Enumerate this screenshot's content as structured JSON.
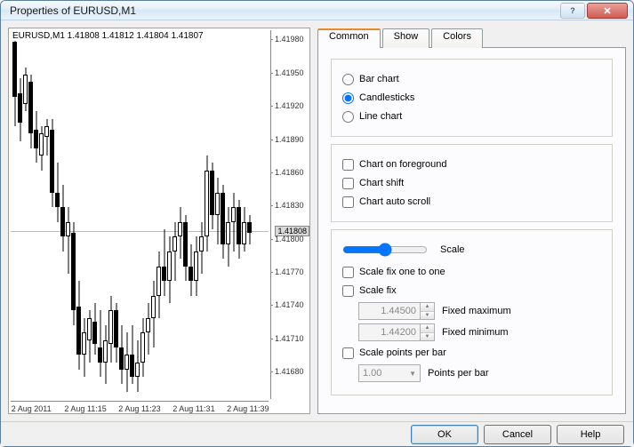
{
  "window": {
    "title": "Properties of EURUSD,M1"
  },
  "chart": {
    "header": "EURUSD,M1  1.41808 1.41812 1.41804 1.41807",
    "yticks": [
      {
        "label": "1.41980",
        "pos": 2.5
      },
      {
        "label": "1.41950",
        "pos": 11.5
      },
      {
        "label": "1.41920",
        "pos": 20.5
      },
      {
        "label": "1.41890",
        "pos": 29.5
      },
      {
        "label": "1.41860",
        "pos": 38.5
      },
      {
        "label": "1.41830",
        "pos": 47.5
      },
      {
        "label": "1.41800",
        "pos": 56.5
      },
      {
        "label": "1.41770",
        "pos": 65.5
      },
      {
        "label": "1.41740",
        "pos": 74.5
      },
      {
        "label": "1.41710",
        "pos": 83.5
      },
      {
        "label": "1.41680",
        "pos": 92.5
      }
    ],
    "xticks": [
      {
        "label": "2 Aug 2011",
        "pos": 8
      },
      {
        "label": "2 Aug 11:15",
        "pos": 29
      },
      {
        "label": "2 Aug 11:23",
        "pos": 50
      },
      {
        "label": "2 Aug 11:31",
        "pos": 71
      },
      {
        "label": "2 Aug 11:39",
        "pos": 92
      }
    ],
    "current_price_label": "1.41808",
    "current_price_pos": 54.5,
    "hline_pos": 54.5,
    "candles": [
      {
        "x": 2,
        "w": 5,
        "hi": 1,
        "lo": 26,
        "o": 3,
        "c": 18,
        "dir": "down"
      },
      {
        "x": 8,
        "w": 5,
        "hi": 13,
        "lo": 30,
        "o": 17,
        "c": 25,
        "dir": "down"
      },
      {
        "x": 14,
        "w": 5,
        "hi": 10,
        "lo": 22,
        "o": 20,
        "c": 12,
        "dir": "up"
      },
      {
        "x": 20,
        "w": 5,
        "hi": 12,
        "lo": 32,
        "o": 14,
        "c": 28,
        "dir": "down"
      },
      {
        "x": 26,
        "w": 5,
        "hi": 22,
        "lo": 36,
        "o": 27,
        "c": 32,
        "dir": "down"
      },
      {
        "x": 32,
        "w": 5,
        "hi": 26,
        "lo": 38,
        "o": 34,
        "c": 28,
        "dir": "up"
      },
      {
        "x": 38,
        "w": 5,
        "hi": 24,
        "lo": 34,
        "o": 29,
        "c": 26,
        "dir": "up"
      },
      {
        "x": 44,
        "w": 5,
        "hi": 24,
        "lo": 48,
        "o": 27,
        "c": 44,
        "dir": "down"
      },
      {
        "x": 50,
        "w": 5,
        "hi": 36,
        "lo": 52,
        "o": 44,
        "c": 48,
        "dir": "down"
      },
      {
        "x": 56,
        "w": 5,
        "hi": 42,
        "lo": 60,
        "o": 48,
        "c": 56,
        "dir": "down"
      },
      {
        "x": 62,
        "w": 5,
        "hi": 48,
        "lo": 66,
        "o": 56,
        "c": 52,
        "dir": "up"
      },
      {
        "x": 68,
        "w": 5,
        "hi": 52,
        "lo": 80,
        "o": 55,
        "c": 76,
        "dir": "down"
      },
      {
        "x": 74,
        "w": 5,
        "hi": 68,
        "lo": 92,
        "o": 75,
        "c": 88,
        "dir": "down"
      },
      {
        "x": 80,
        "w": 5,
        "hi": 78,
        "lo": 94,
        "o": 88,
        "c": 82,
        "dir": "up"
      },
      {
        "x": 86,
        "w": 5,
        "hi": 76,
        "lo": 90,
        "o": 84,
        "c": 78,
        "dir": "up"
      },
      {
        "x": 92,
        "w": 5,
        "hi": 74,
        "lo": 88,
        "o": 79,
        "c": 85,
        "dir": "down"
      },
      {
        "x": 98,
        "w": 5,
        "hi": 76,
        "lo": 94,
        "o": 86,
        "c": 90,
        "dir": "down"
      },
      {
        "x": 104,
        "w": 5,
        "hi": 80,
        "lo": 96,
        "o": 90,
        "c": 84,
        "dir": "up"
      },
      {
        "x": 110,
        "w": 5,
        "hi": 72,
        "lo": 90,
        "o": 85,
        "c": 76,
        "dir": "up"
      },
      {
        "x": 116,
        "w": 5,
        "hi": 74,
        "lo": 90,
        "o": 76,
        "c": 86,
        "dir": "down"
      },
      {
        "x": 122,
        "w": 5,
        "hi": 80,
        "lo": 96,
        "o": 86,
        "c": 92,
        "dir": "down"
      },
      {
        "x": 128,
        "w": 5,
        "hi": 82,
        "lo": 98,
        "o": 92,
        "c": 88,
        "dir": "up"
      },
      {
        "x": 134,
        "w": 5,
        "hi": 80,
        "lo": 96,
        "o": 88,
        "c": 94,
        "dir": "down"
      },
      {
        "x": 140,
        "w": 5,
        "hi": 84,
        "lo": 98,
        "o": 94,
        "c": 90,
        "dir": "up"
      },
      {
        "x": 146,
        "w": 5,
        "hi": 78,
        "lo": 94,
        "o": 90,
        "c": 82,
        "dir": "up"
      },
      {
        "x": 152,
        "w": 5,
        "hi": 74,
        "lo": 88,
        "o": 82,
        "c": 78,
        "dir": "up"
      },
      {
        "x": 158,
        "w": 5,
        "hi": 68,
        "lo": 86,
        "o": 78,
        "c": 72,
        "dir": "up"
      },
      {
        "x": 164,
        "w": 5,
        "hi": 60,
        "lo": 78,
        "o": 72,
        "c": 64,
        "dir": "up"
      },
      {
        "x": 170,
        "w": 5,
        "hi": 54,
        "lo": 72,
        "o": 64,
        "c": 68,
        "dir": "down"
      },
      {
        "x": 176,
        "w": 5,
        "hi": 56,
        "lo": 74,
        "o": 68,
        "c": 60,
        "dir": "up"
      },
      {
        "x": 182,
        "w": 5,
        "hi": 52,
        "lo": 68,
        "o": 60,
        "c": 56,
        "dir": "up"
      },
      {
        "x": 188,
        "w": 5,
        "hi": 48,
        "lo": 62,
        "o": 56,
        "c": 52,
        "dir": "up"
      },
      {
        "x": 194,
        "w": 5,
        "hi": 50,
        "lo": 68,
        "o": 52,
        "c": 64,
        "dir": "down"
      },
      {
        "x": 200,
        "w": 5,
        "hi": 58,
        "lo": 72,
        "o": 64,
        "c": 68,
        "dir": "down"
      },
      {
        "x": 206,
        "w": 5,
        "hi": 56,
        "lo": 72,
        "o": 68,
        "c": 60,
        "dir": "up"
      },
      {
        "x": 212,
        "w": 5,
        "hi": 52,
        "lo": 66,
        "o": 60,
        "c": 56,
        "dir": "up"
      },
      {
        "x": 218,
        "w": 5,
        "hi": 34,
        "lo": 60,
        "o": 56,
        "c": 38,
        "dir": "up"
      },
      {
        "x": 224,
        "w": 5,
        "hi": 36,
        "lo": 54,
        "o": 38,
        "c": 50,
        "dir": "down"
      },
      {
        "x": 230,
        "w": 5,
        "hi": 40,
        "lo": 58,
        "o": 50,
        "c": 44,
        "dir": "up"
      },
      {
        "x": 236,
        "w": 5,
        "hi": 42,
        "lo": 62,
        "o": 44,
        "c": 58,
        "dir": "down"
      },
      {
        "x": 242,
        "w": 5,
        "hi": 48,
        "lo": 64,
        "o": 58,
        "c": 52,
        "dir": "up"
      },
      {
        "x": 248,
        "w": 5,
        "hi": 44,
        "lo": 60,
        "o": 52,
        "c": 48,
        "dir": "up"
      },
      {
        "x": 254,
        "w": 5,
        "hi": 46,
        "lo": 62,
        "o": 48,
        "c": 58,
        "dir": "down"
      },
      {
        "x": 260,
        "w": 5,
        "hi": 48,
        "lo": 60,
        "o": 58,
        "c": 52,
        "dir": "up"
      },
      {
        "x": 266,
        "w": 5,
        "hi": 50,
        "lo": 58,
        "o": 52,
        "c": 55,
        "dir": "down"
      }
    ]
  },
  "tabs": {
    "common": "Common",
    "show": "Show",
    "colors": "Colors"
  },
  "chartType": {
    "bar": "Bar chart",
    "candle": "Candlesticks",
    "line": "Line chart",
    "selected": "candle"
  },
  "options": {
    "foreground": "Chart on foreground",
    "shift": "Chart shift",
    "autoscroll": "Chart auto scroll"
  },
  "scale": {
    "label": "Scale",
    "oneToOne": "Scale fix one to one",
    "fix": "Scale fix",
    "fixedMax": "1.44500",
    "fixedMaxLabel": "Fixed maximum",
    "fixedMin": "1.44200",
    "fixedMinLabel": "Fixed minimum",
    "pointsPerBar": "Scale points per bar",
    "ppbValue": "1.00",
    "ppbLabel": "Points per bar"
  },
  "buttons": {
    "ok": "OK",
    "cancel": "Cancel",
    "help": "Help"
  }
}
